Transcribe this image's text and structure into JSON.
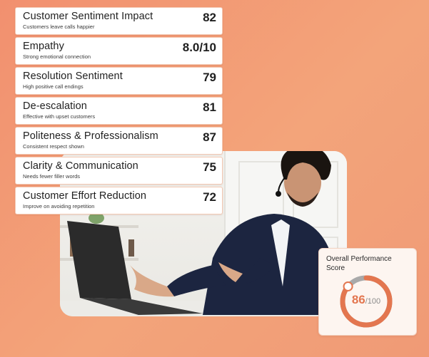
{
  "metrics": [
    {
      "title": "Customer Sentiment Impact",
      "subtitle": "Customers leave calls happier",
      "score": "82"
    },
    {
      "title": "Empathy",
      "subtitle": "Strong emotional connection",
      "score": "8.0/10"
    },
    {
      "title": "Resolution Sentiment",
      "subtitle": "High positive call endings",
      "score": "79"
    },
    {
      "title": "De-escalation",
      "subtitle": "Effective with upset customers",
      "score": "81"
    },
    {
      "title": "Politeness & Professionalism",
      "subtitle": "Consistent respect shown",
      "score": "87"
    },
    {
      "title": "Clarity & Communication",
      "subtitle": "Needs fewer filler words",
      "score": "75"
    },
    {
      "title": "Customer Effort Reduction",
      "subtitle": "Improve on avoiding repetition",
      "score": "72"
    }
  ],
  "overall": {
    "title": "Overall Performance Score",
    "score": "86",
    "max": "/100",
    "fraction": 0.86,
    "accent": "#e3764f",
    "track": "#a9a9a9"
  },
  "background": {
    "gradient_start": "#f2906f",
    "gradient_end": "#f3a47a"
  }
}
